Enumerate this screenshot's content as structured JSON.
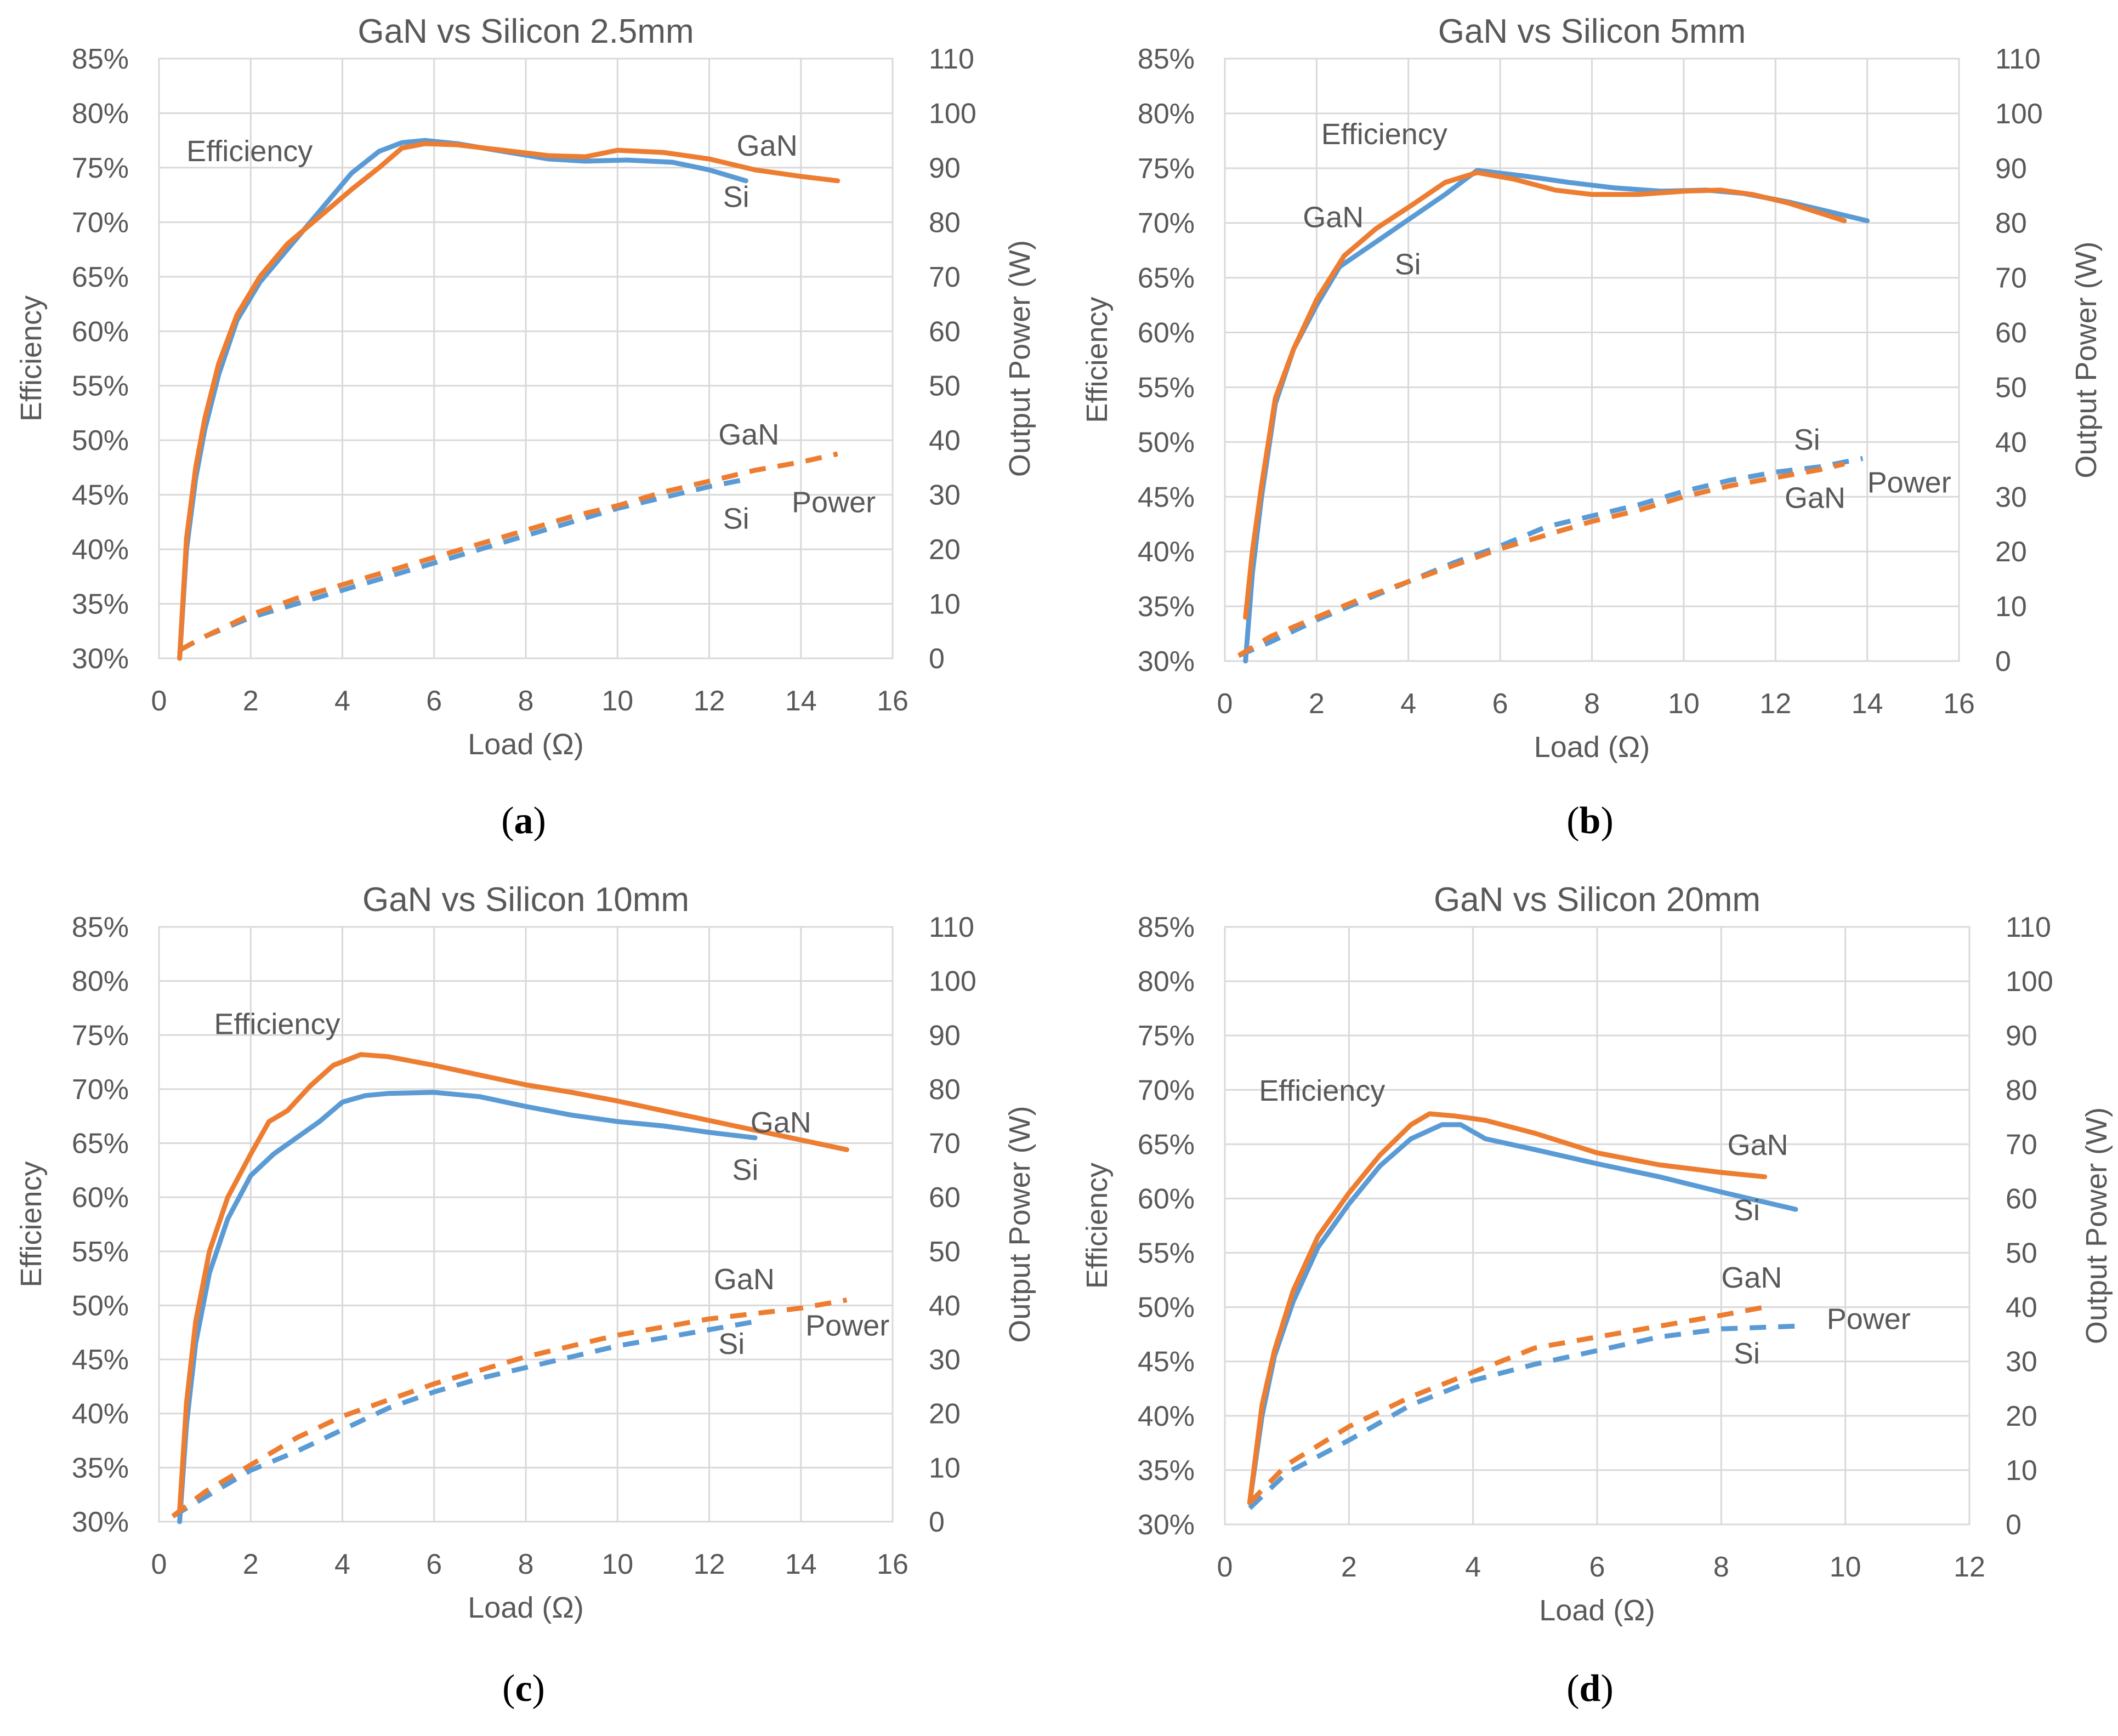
{
  "colors": {
    "Si": "#5B9BD5",
    "GaN": "#ED7D31",
    "grid": "#D9D9D9",
    "text": "#595959"
  },
  "chart_data": [
    {
      "type": "line",
      "title": "GaN vs Silicon 2.5mm",
      "caption_letter": "a",
      "xlabel": "Load (Ω)",
      "ylabel": "Efficiency",
      "y2label": "Output Power (W)",
      "xlim": [
        0,
        16
      ],
      "xticks": [
        0,
        2,
        4,
        6,
        8,
        10,
        12,
        14,
        16
      ],
      "ylim": [
        30,
        85
      ],
      "yticks": [
        "30%",
        "35%",
        "40%",
        "45%",
        "50%",
        "55%",
        "60%",
        "65%",
        "70%",
        "75%",
        "80%",
        "85%"
      ],
      "y2lim": [
        0,
        110
      ],
      "y2ticks": [
        0,
        10,
        20,
        30,
        40,
        50,
        60,
        70,
        80,
        90,
        100,
        110
      ],
      "grid": true,
      "series": [
        {
          "name": "Si",
          "kind": "efficiency",
          "axis": "left",
          "x": [
            0.45,
            0.6,
            0.8,
            1.0,
            1.3,
            1.7,
            2.2,
            2.8,
            3.5,
            4.2,
            4.8,
            5.3,
            5.8,
            6.5,
            7.5,
            8.5,
            9.3,
            10.2,
            11.2,
            12.0,
            12.8
          ],
          "y": [
            30.0,
            40.0,
            46.5,
            51.0,
            56.0,
            61.0,
            64.5,
            67.5,
            71.0,
            74.5,
            76.5,
            77.3,
            77.5,
            77.2,
            76.5,
            75.8,
            75.6,
            75.7,
            75.5,
            74.8,
            73.8
          ]
        },
        {
          "name": "GaN",
          "kind": "efficiency",
          "axis": "left",
          "x": [
            0.45,
            0.6,
            0.8,
            1.0,
            1.3,
            1.7,
            2.2,
            2.8,
            3.5,
            4.2,
            4.8,
            5.3,
            5.8,
            6.5,
            7.5,
            8.5,
            9.3,
            10.0,
            11.0,
            12.0,
            13.0,
            14.0,
            14.8
          ],
          "y": [
            30.0,
            41.0,
            47.5,
            52.0,
            57.0,
            61.5,
            65.0,
            68.0,
            70.5,
            73.0,
            75.0,
            76.8,
            77.2,
            77.1,
            76.6,
            76.1,
            76.0,
            76.6,
            76.4,
            75.8,
            74.8,
            74.2,
            73.8
          ]
        },
        {
          "name": "Si",
          "kind": "power",
          "axis": "right",
          "x": [
            0.45,
            1,
            2,
            3,
            4,
            5,
            6,
            7,
            8,
            9,
            10,
            11,
            12,
            12.9
          ],
          "y": [
            1.5,
            4.0,
            7.5,
            10.0,
            12.5,
            15.0,
            17.5,
            20.0,
            22.5,
            25.0,
            27.5,
            29.5,
            31.5,
            33.0
          ]
        },
        {
          "name": "GaN",
          "kind": "power",
          "axis": "right",
          "x": [
            0.45,
            1,
            2,
            3,
            4,
            5,
            6,
            7,
            8,
            9,
            10,
            11,
            12,
            13,
            14,
            14.8
          ],
          "y": [
            1.5,
            4.0,
            8.0,
            11.0,
            13.5,
            16.0,
            18.5,
            21.0,
            23.5,
            26.0,
            28.0,
            30.5,
            32.5,
            34.5,
            36.0,
            37.5
          ]
        }
      ],
      "annotations": [
        {
          "text": "Efficiency",
          "x": 0.6,
          "y": 75.6,
          "axis": "left"
        },
        {
          "text": "GaN",
          "x": 12.6,
          "y": 76.1,
          "axis": "left"
        },
        {
          "text": "Si",
          "x": 12.3,
          "y": 71.4,
          "axis": "left"
        },
        {
          "text": "GaN",
          "x": 12.2,
          "y": 49.6,
          "axis": "left"
        },
        {
          "text": "Si",
          "x": 12.3,
          "y": 41.9,
          "axis": "left"
        },
        {
          "text": "Power",
          "x": 13.8,
          "y": 43.4,
          "axis": "left"
        }
      ]
    },
    {
      "type": "line",
      "title": "GaN vs Silicon 5mm",
      "caption_letter": "b",
      "xlabel": "Load (Ω)",
      "ylabel": "Efficiency",
      "y2label": "Output Power (W)",
      "xlim": [
        0,
        16
      ],
      "xticks": [
        0,
        2,
        4,
        6,
        8,
        10,
        12,
        14,
        16
      ],
      "ylim": [
        30,
        85
      ],
      "yticks": [
        "30%",
        "35%",
        "40%",
        "45%",
        "50%",
        "55%",
        "60%",
        "65%",
        "70%",
        "75%",
        "80%",
        "85%"
      ],
      "y2lim": [
        0,
        110
      ],
      "y2ticks": [
        0,
        10,
        20,
        30,
        40,
        50,
        60,
        70,
        80,
        90,
        100,
        110
      ],
      "grid": true,
      "series": [
        {
          "name": "Si",
          "kind": "efficiency",
          "axis": "left",
          "x": [
            0.45,
            0.6,
            0.8,
            1.1,
            1.5,
            2.0,
            2.5,
            3.2,
            4.0,
            4.8,
            5.5,
            6.5,
            7.5,
            8.5,
            9.5,
            10.5,
            11.3,
            12.3,
            13.2,
            14.0
          ],
          "y": [
            30.0,
            38.0,
            45.0,
            53.5,
            58.5,
            62.5,
            66.0,
            68.0,
            70.3,
            72.6,
            74.8,
            74.3,
            73.7,
            73.2,
            72.9,
            73.0,
            72.7,
            71.9,
            71.0,
            70.2
          ]
        },
        {
          "name": "GaN",
          "kind": "efficiency",
          "axis": "left",
          "x": [
            0.45,
            0.6,
            0.8,
            1.1,
            1.5,
            2.0,
            2.6,
            3.3,
            4.1,
            4.8,
            5.5,
            6.3,
            7.2,
            8.0,
            9.0,
            10.0,
            10.8,
            11.5,
            12.3,
            13.5
          ],
          "y": [
            34.0,
            40.0,
            46.0,
            54.0,
            58.5,
            63.0,
            67.0,
            69.5,
            71.7,
            73.7,
            74.6,
            74.0,
            73.0,
            72.6,
            72.6,
            72.9,
            73.0,
            72.6,
            71.8,
            70.2
          ]
        },
        {
          "name": "Si",
          "kind": "power",
          "axis": "right",
          "x": [
            0.3,
            1,
            2,
            3,
            4,
            5,
            6,
            7,
            8,
            9,
            10,
            11,
            12,
            13,
            13.9
          ],
          "y": [
            1.0,
            3.5,
            7.5,
            11.0,
            14.5,
            18.0,
            21.0,
            24.5,
            26.5,
            28.5,
            31.0,
            33.0,
            34.5,
            35.5,
            37.0
          ]
        },
        {
          "name": "GaN",
          "kind": "power",
          "axis": "right",
          "x": [
            0.3,
            1,
            2,
            3,
            4,
            5,
            6,
            7,
            8,
            9,
            10,
            11,
            12,
            13,
            13.5
          ],
          "y": [
            1.0,
            4.5,
            8.0,
            11.5,
            14.5,
            17.5,
            20.5,
            23.0,
            25.5,
            27.5,
            30.0,
            32.0,
            33.5,
            35.0,
            36.0
          ]
        }
      ],
      "annotations": [
        {
          "text": "Efficiency",
          "x": 2.1,
          "y": 77.2,
          "axis": "left"
        },
        {
          "text": "GaN",
          "x": 1.7,
          "y": 69.6,
          "axis": "left"
        },
        {
          "text": "Si",
          "x": 3.7,
          "y": 65.3,
          "axis": "left"
        },
        {
          "text": "Si",
          "x": 12.4,
          "y": 49.3,
          "axis": "left"
        },
        {
          "text": "Power",
          "x": 14.0,
          "y": 45.4,
          "axis": "left"
        },
        {
          "text": "GaN",
          "x": 12.2,
          "y": 44.0,
          "axis": "left"
        }
      ]
    },
    {
      "type": "line",
      "title": "GaN vs Silicon 10mm",
      "caption_letter": "c",
      "xlabel": "Load (Ω)",
      "ylabel": "Efficiency",
      "y2label": "Output Power (W)",
      "xlim": [
        0,
        16
      ],
      "xticks": [
        0,
        2,
        4,
        6,
        8,
        10,
        12,
        14,
        16
      ],
      "ylim": [
        30,
        85
      ],
      "yticks": [
        "30%",
        "35%",
        "40%",
        "45%",
        "50%",
        "55%",
        "60%",
        "65%",
        "70%",
        "75%",
        "80%",
        "85%"
      ],
      "y2lim": [
        0,
        110
      ],
      "y2ticks": [
        0,
        10,
        20,
        30,
        40,
        50,
        60,
        70,
        80,
        90,
        100,
        110
      ],
      "grid": true,
      "series": [
        {
          "name": "Si",
          "kind": "efficiency",
          "axis": "left",
          "x": [
            0.45,
            0.6,
            0.8,
            1.1,
            1.5,
            2.0,
            2.5,
            3.0,
            3.5,
            4.0,
            4.5,
            5.0,
            6.0,
            7.0,
            8.0,
            9.0,
            10.0,
            11.0,
            12.0,
            13.0
          ],
          "y": [
            30.0,
            39.0,
            46.5,
            53.0,
            58.0,
            62.0,
            64.0,
            65.5,
            67.0,
            68.8,
            69.4,
            69.6,
            69.7,
            69.3,
            68.4,
            67.6,
            67.0,
            66.6,
            66.0,
            65.5
          ]
        },
        {
          "name": "GaN",
          "kind": "efficiency",
          "axis": "left",
          "x": [
            0.45,
            0.6,
            0.8,
            1.1,
            1.5,
            2.0,
            2.4,
            2.8,
            3.3,
            3.8,
            4.4,
            5.0,
            6.0,
            7.0,
            8.0,
            9.0,
            10.0,
            11.0,
            12.0,
            13.0,
            14.0,
            15.0
          ],
          "y": [
            31.0,
            41.0,
            48.5,
            55.0,
            60.0,
            64.0,
            67.0,
            68.0,
            70.3,
            72.2,
            73.2,
            73.0,
            72.2,
            71.3,
            70.4,
            69.7,
            68.9,
            68.0,
            67.1,
            66.2,
            65.3,
            64.4
          ]
        },
        {
          "name": "Si",
          "kind": "power",
          "axis": "right",
          "x": [
            0.3,
            1,
            2,
            3,
            4,
            5,
            6,
            7,
            8,
            9,
            10,
            11,
            12,
            13
          ],
          "y": [
            1.0,
            4.5,
            9.5,
            13.0,
            17.0,
            21.0,
            24.0,
            26.5,
            28.5,
            30.5,
            32.5,
            34.0,
            35.5,
            37.0
          ]
        },
        {
          "name": "GaN",
          "kind": "power",
          "axis": "right",
          "x": [
            0.3,
            1,
            2,
            3,
            4,
            5,
            6,
            7,
            8,
            9,
            10,
            11,
            12,
            13,
            14,
            15
          ],
          "y": [
            1.0,
            5.5,
            10.5,
            15.5,
            19.5,
            22.5,
            25.5,
            28.0,
            30.5,
            32.5,
            34.5,
            36.0,
            37.5,
            38.5,
            39.5,
            41.0
          ]
        }
      ],
      "annotations": [
        {
          "text": "Efficiency",
          "x": 1.2,
          "y": 75.1,
          "axis": "left"
        },
        {
          "text": "GaN",
          "x": 12.9,
          "y": 66.0,
          "axis": "left"
        },
        {
          "text": "Si",
          "x": 12.5,
          "y": 61.6,
          "axis": "left"
        },
        {
          "text": "GaN",
          "x": 12.1,
          "y": 51.5,
          "axis": "left"
        },
        {
          "text": "Si",
          "x": 12.2,
          "y": 45.5,
          "axis": "left"
        },
        {
          "text": "Power",
          "x": 14.1,
          "y": 47.2,
          "axis": "left"
        }
      ]
    },
    {
      "type": "line",
      "title": "GaN vs Silicon 20mm",
      "caption_letter": "d",
      "xlabel": "Load (Ω)",
      "ylabel": "Efficiency",
      "y2label": "Output Power (W)",
      "xlim": [
        0,
        12
      ],
      "xticks": [
        0,
        2,
        4,
        6,
        8,
        10,
        12
      ],
      "ylim": [
        30,
        85
      ],
      "yticks": [
        "30%",
        "35%",
        "40%",
        "45%",
        "50%",
        "55%",
        "60%",
        "65%",
        "70%",
        "75%",
        "80%",
        "85%"
      ],
      "y2lim": [
        0,
        110
      ],
      "y2ticks": [
        0,
        10,
        20,
        30,
        40,
        50,
        60,
        70,
        80,
        90,
        100,
        110
      ],
      "grid": true,
      "series": [
        {
          "name": "Si",
          "kind": "efficiency",
          "axis": "left",
          "x": [
            0.4,
            0.6,
            0.8,
            1.1,
            1.5,
            2.0,
            2.5,
            3.0,
            3.5,
            3.8,
            4.2,
            5.0,
            6.0,
            7.0,
            8.0,
            9.2
          ],
          "y": [
            32.0,
            40.0,
            45.5,
            50.5,
            55.5,
            59.5,
            63.0,
            65.5,
            66.8,
            66.8,
            65.5,
            64.5,
            63.2,
            62.0,
            60.6,
            59.0
          ]
        },
        {
          "name": "GaN",
          "kind": "efficiency",
          "axis": "left",
          "x": [
            0.4,
            0.6,
            0.8,
            1.1,
            1.5,
            2.0,
            2.5,
            3.0,
            3.3,
            3.7,
            4.2,
            5.0,
            6.0,
            7.0,
            8.0,
            8.7
          ],
          "y": [
            32.0,
            41.0,
            46.0,
            51.5,
            56.5,
            60.5,
            64.0,
            66.8,
            67.8,
            67.6,
            67.2,
            66.0,
            64.2,
            63.1,
            62.4,
            62.0
          ]
        },
        {
          "name": "Si",
          "kind": "power",
          "axis": "right",
          "x": [
            0.4,
            1,
            2,
            3,
            4,
            5,
            6,
            7,
            8,
            9.2
          ],
          "y": [
            3.0,
            9.5,
            15.5,
            22.0,
            26.5,
            29.5,
            32.0,
            34.5,
            36.0,
            36.5
          ]
        },
        {
          "name": "GaN",
          "kind": "power",
          "axis": "right",
          "x": [
            0.4,
            1,
            2,
            3,
            4,
            5,
            6,
            7,
            8,
            8.7
          ],
          "y": [
            4.0,
            11.0,
            18.0,
            23.5,
            28.0,
            32.5,
            34.5,
            36.5,
            38.5,
            40.0
          ]
        }
      ],
      "annotations": [
        {
          "text": "Efficiency",
          "x": 0.55,
          "y": 69.0,
          "axis": "left"
        },
        {
          "text": "GaN",
          "x": 8.1,
          "y": 64.0,
          "axis": "left"
        },
        {
          "text": "Si",
          "x": 8.2,
          "y": 58.0,
          "axis": "left"
        },
        {
          "text": "GaN",
          "x": 8.0,
          "y": 51.8,
          "axis": "left"
        },
        {
          "text": "Power",
          "x": 9.7,
          "y": 48.0,
          "axis": "left"
        },
        {
          "text": "Si",
          "x": 8.2,
          "y": 44.8,
          "axis": "left"
        }
      ]
    }
  ]
}
